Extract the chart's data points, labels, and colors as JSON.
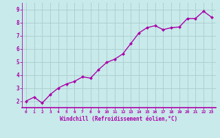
{
  "x": [
    0,
    1,
    2,
    3,
    4,
    5,
    6,
    7,
    8,
    9,
    10,
    11,
    12,
    13,
    14,
    15,
    16,
    17,
    18,
    19,
    20,
    21,
    22,
    23
  ],
  "y": [
    2.0,
    2.3,
    1.85,
    2.5,
    3.0,
    3.3,
    3.5,
    3.85,
    3.75,
    4.4,
    4.95,
    5.2,
    5.6,
    6.4,
    7.2,
    7.6,
    7.75,
    7.45,
    7.6,
    7.65,
    8.3,
    8.3,
    8.85,
    8.4
  ],
  "line_color": "#aa00aa",
  "marker": "D",
  "marker_size": 2.0,
  "bg_color": "#c8eaea",
  "grid_color": "#aacccc",
  "xlabel": "Windchill (Refroidissement éolien,°C)",
  "ylabel_ticks": [
    2,
    3,
    4,
    5,
    6,
    7,
    8,
    9
  ],
  "xtick_labels": [
    "0",
    "1",
    "2",
    "3",
    "4",
    "5",
    "6",
    "7",
    "8",
    "9",
    "10",
    "11",
    "12",
    "13",
    "14",
    "15",
    "16",
    "17",
    "18",
    "19",
    "20",
    "21",
    "22",
    "23"
  ],
  "ylim": [
    1.5,
    9.5
  ],
  "xlim": [
    -0.5,
    23.5
  ],
  "axis_color": "#aa00aa",
  "tick_color": "#aa00aa",
  "label_color": "#aa00aa",
  "linewidth": 1.0
}
